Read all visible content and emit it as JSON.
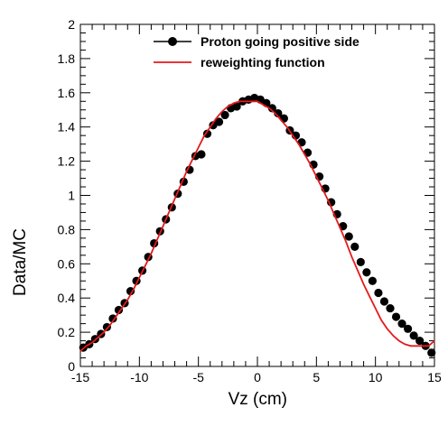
{
  "chart_data": {
    "type": "scatter",
    "xlabel": "Vz (cm)",
    "ylabel": "Data/MC",
    "xlim": [
      -15,
      15
    ],
    "ylim": [
      0,
      2
    ],
    "x_ticks": [
      -15,
      -10,
      -5,
      0,
      5,
      10,
      15
    ],
    "y_ticks": [
      0,
      0.2,
      0.4,
      0.6,
      0.8,
      1,
      1.2,
      1.4,
      1.6,
      1.8,
      2
    ],
    "x_tick_labels": [
      "-15",
      "-10",
      "-5",
      "0",
      "5",
      "10",
      "15"
    ],
    "y_tick_labels": [
      "0",
      "0.2",
      "0.4",
      "0.6",
      "0.8",
      "1",
      "1.2",
      "1.4",
      "1.6",
      "1.8",
      "2"
    ],
    "grid": false,
    "legend_position": "top-right",
    "legend": [
      {
        "label": "Proton going positive side",
        "style": "marker-line",
        "color": "#000000"
      },
      {
        "label": "reweighting function",
        "style": "line",
        "color": "#e41a1c"
      }
    ],
    "series": [
      {
        "name": "Proton going positive side",
        "style": "markers",
        "color": "#000000",
        "x": [
          -14.75,
          -14.25,
          -13.75,
          -13.25,
          -12.75,
          -12.25,
          -11.75,
          -11.25,
          -10.75,
          -10.25,
          -9.75,
          -9.25,
          -8.75,
          -8.25,
          -7.75,
          -7.25,
          -6.75,
          -6.25,
          -5.75,
          -5.25,
          -4.75,
          -4.25,
          -3.75,
          -3.25,
          -2.75,
          -2.25,
          -1.75,
          -1.25,
          -0.75,
          -0.25,
          0.25,
          0.75,
          1.25,
          1.75,
          2.25,
          2.75,
          3.25,
          3.75,
          4.25,
          4.75,
          5.25,
          5.75,
          6.25,
          6.75,
          7.25,
          7.75,
          8.25,
          8.75,
          9.25,
          9.75,
          10.25,
          10.75,
          11.25,
          11.75,
          12.25,
          12.75,
          13.25,
          13.75,
          14.25,
          14.75
        ],
        "y": [
          0.11,
          0.13,
          0.16,
          0.19,
          0.23,
          0.28,
          0.33,
          0.37,
          0.44,
          0.5,
          0.56,
          0.64,
          0.72,
          0.79,
          0.86,
          0.93,
          1.01,
          1.08,
          1.15,
          1.23,
          1.24,
          1.36,
          1.41,
          1.43,
          1.47,
          1.51,
          1.52,
          1.55,
          1.56,
          1.57,
          1.56,
          1.54,
          1.51,
          1.48,
          1.45,
          1.38,
          1.35,
          1.31,
          1.25,
          1.18,
          1.11,
          1.04,
          0.96,
          0.89,
          0.82,
          0.76,
          0.7,
          0.61,
          0.55,
          0.5,
          0.43,
          0.38,
          0.34,
          0.29,
          0.25,
          0.22,
          0.18,
          0.15,
          0.12,
          0.08
        ]
      },
      {
        "name": "reweighting function",
        "style": "line",
        "color": "#e41a1c",
        "x": [
          -15,
          -14.5,
          -14,
          -13.5,
          -13,
          -12.5,
          -12,
          -11.5,
          -11,
          -10.5,
          -10,
          -9.5,
          -9,
          -8.5,
          -8,
          -7.5,
          -7,
          -6.5,
          -6,
          -5.5,
          -5,
          -4.5,
          -4,
          -3.5,
          -3,
          -2.5,
          -2,
          -1.5,
          -1,
          -0.5,
          0,
          0.5,
          1,
          1.5,
          2,
          2.5,
          3,
          3.5,
          4,
          4.5,
          5,
          5.5,
          6,
          6.5,
          7,
          7.5,
          8,
          8.5,
          9,
          9.5,
          10,
          10.5,
          11,
          11.5,
          12,
          12.5,
          13,
          13.5,
          14,
          14.5,
          15
        ],
        "y": [
          0.09,
          0.12,
          0.14,
          0.17,
          0.2,
          0.24,
          0.29,
          0.34,
          0.39,
          0.45,
          0.52,
          0.59,
          0.66,
          0.74,
          0.82,
          0.9,
          0.98,
          1.06,
          1.14,
          1.21,
          1.28,
          1.35,
          1.4,
          1.45,
          1.49,
          1.52,
          1.54,
          1.55,
          1.55,
          1.55,
          1.55,
          1.53,
          1.51,
          1.48,
          1.44,
          1.4,
          1.35,
          1.3,
          1.24,
          1.18,
          1.11,
          1.04,
          0.97,
          0.89,
          0.81,
          0.73,
          0.64,
          0.56,
          0.48,
          0.41,
          0.34,
          0.27,
          0.22,
          0.18,
          0.15,
          0.13,
          0.12,
          0.12,
          0.12,
          0.12,
          0.15
        ]
      }
    ]
  }
}
